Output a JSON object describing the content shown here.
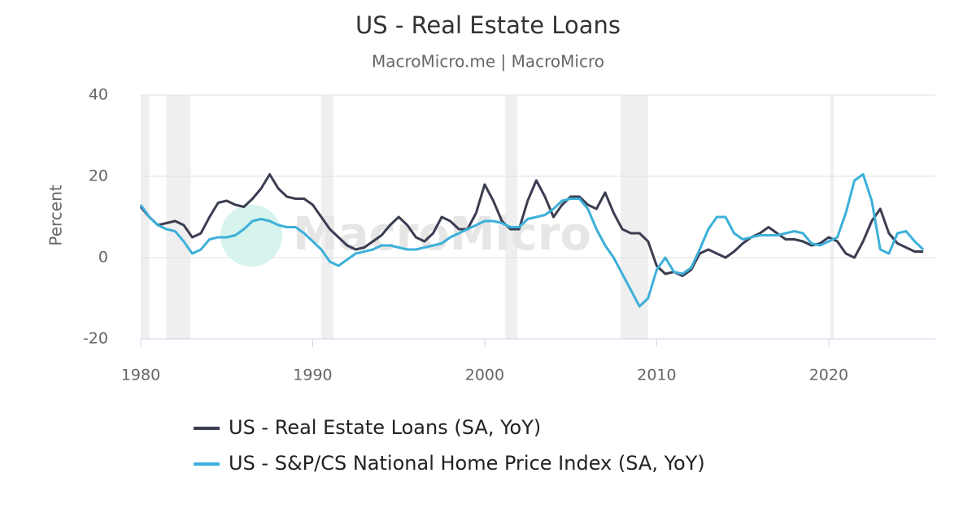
{
  "chart_data": {
    "type": "line",
    "title": "US - Real Estate Loans",
    "subtitle": "MacroMicro.me | MacroMicro",
    "y_label": "Percent",
    "watermark": "MacroMicro",
    "x": [
      1980,
      1980.5,
      1981,
      1981.5,
      1982,
      1982.5,
      1983,
      1983.5,
      1984,
      1984.5,
      1985,
      1985.5,
      1986,
      1986.5,
      1987,
      1987.5,
      1988,
      1988.5,
      1989,
      1989.5,
      1990,
      1990.5,
      1991,
      1991.5,
      1992,
      1992.5,
      1993,
      1993.5,
      1994,
      1994.5,
      1995,
      1995.5,
      1996,
      1996.5,
      1997,
      1997.5,
      1998,
      1998.5,
      1999,
      1999.5,
      2000,
      2000.5,
      2001,
      2001.5,
      2002,
      2002.5,
      2003,
      2003.5,
      2004,
      2004.5,
      2005,
      2005.5,
      2006,
      2006.5,
      2007,
      2007.5,
      2008,
      2008.5,
      2009,
      2009.5,
      2010,
      2010.5,
      2011,
      2011.5,
      2012,
      2012.5,
      2013,
      2013.5,
      2014,
      2014.5,
      2015,
      2015.5,
      2016,
      2016.5,
      2017,
      2017.5,
      2018,
      2018.5,
      2019,
      2019.5,
      2020,
      2020.5,
      2021,
      2021.5,
      2022,
      2022.5,
      2023,
      2023.5,
      2024,
      2024.5,
      2025,
      2025.5
    ],
    "series": [
      {
        "name": "US - Real Estate Loans (SA, YoY)",
        "color": "#3b3e51",
        "values": [
          12.5,
          10,
          8,
          8.5,
          9,
          8,
          5,
          6,
          10,
          13.5,
          14,
          13,
          12.5,
          14.5,
          17,
          20.5,
          17,
          15,
          14.5,
          14.5,
          13,
          10,
          7,
          5,
          3,
          2,
          2.5,
          4,
          5.5,
          8,
          10,
          8,
          5,
          4,
          6,
          10,
          9,
          7,
          7,
          11,
          18,
          14,
          9,
          7,
          7,
          14,
          19,
          15,
          10,
          13,
          15,
          15,
          13,
          12,
          16,
          11,
          7,
          6,
          6,
          4,
          -2,
          -4,
          -3.5,
          -4.5,
          -3,
          1,
          2,
          1,
          0,
          1.5,
          3.5,
          5,
          6,
          7.5,
          6,
          4.5,
          4.5,
          4,
          3,
          3.5,
          5,
          4,
          1,
          0,
          4,
          9,
          12,
          6,
          3.5,
          2.5,
          1.5,
          1.5
        ]
      },
      {
        "name": "US - S&P/CS National Home Price Index (SA, YoY)",
        "color": "#3db0d9",
        "values": [
          13,
          10,
          8,
          7,
          6.5,
          4,
          1,
          2,
          4.5,
          5,
          5,
          5.5,
          7,
          9,
          9.5,
          9,
          8,
          7.5,
          7.5,
          6,
          4,
          2,
          -1,
          -2,
          -0.5,
          1,
          1.5,
          2,
          3,
          3,
          2.5,
          2,
          2,
          2.5,
          3,
          3.5,
          5,
          6,
          7,
          8,
          9,
          9,
          8.5,
          7.5,
          7.5,
          9.5,
          10,
          10.5,
          12,
          14,
          14.5,
          14.5,
          12,
          7,
          3,
          0,
          -4,
          -8,
          -12,
          -10,
          -3,
          0,
          -3.5,
          -4,
          -2.5,
          2,
          7,
          10,
          10,
          6,
          4.5,
          5,
          5.5,
          5.5,
          5.5,
          6,
          6.5,
          6,
          3.5,
          3,
          4,
          5,
          11,
          19,
          20.5,
          14,
          2,
          1,
          6,
          6.5,
          4,
          2
        ]
      }
    ],
    "shaded_periods": [
      [
        1980,
        1980.5
      ],
      [
        1981.5,
        1982.9
      ],
      [
        1990.5,
        1991.2
      ],
      [
        2001.2,
        2001.9
      ],
      [
        2007.9,
        2009.5
      ],
      [
        2020.1,
        2020.3
      ]
    ],
    "xlim": [
      1980,
      2026.2
    ],
    "xticks": [
      1980,
      1990,
      2000,
      2010,
      2020
    ],
    "ylim": [
      -20,
      40
    ],
    "yticks": [
      -20,
      0,
      20,
      40
    ],
    "grid": true
  }
}
